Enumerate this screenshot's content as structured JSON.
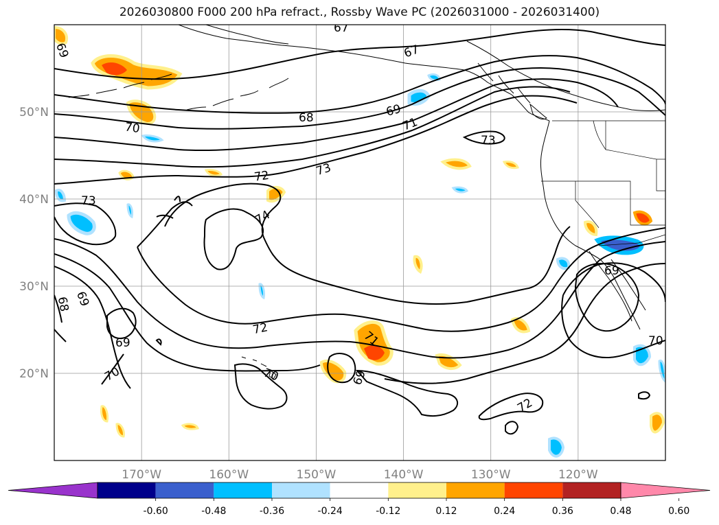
{
  "title": "2026030800 F000 200 hPa refract., Rossby Wave PC (2026031000 - 2026031400)",
  "map": {
    "lat_labels": [
      "50°N",
      "40°N",
      "30°N",
      "20°N"
    ],
    "lon_labels": [
      "170°W",
      "160°W",
      "150°W",
      "140°W",
      "130°W",
      "120°W"
    ],
    "lat_values": [
      50,
      40,
      30,
      20
    ],
    "lon_values": [
      -170,
      -160,
      -150,
      -140,
      -130,
      -120
    ],
    "extent": {
      "lon_min": -180,
      "lon_max": -110,
      "lat_min": 10,
      "lat_max": 60
    },
    "axis_label_color": "#808080",
    "contour_labels": [
      "67",
      "67",
      "69",
      "68",
      "69",
      "70",
      "71",
      "73",
      "72",
      "73",
      "73",
      "74",
      "68",
      "69",
      "69",
      "72",
      "71",
      "69",
      "70",
      "70",
      "69",
      "72",
      "70"
    ]
  },
  "colorbar": {
    "ticks": [
      "-0.60",
      "-0.48",
      "-0.36",
      "-0.24",
      "-0.12",
      "0.12",
      "0.24",
      "0.36",
      "0.48",
      "0.60"
    ],
    "colors": [
      "#9933cc",
      "#00008b",
      "#3a5fcd",
      "#00bfff",
      "#b0e2ff",
      "#ffffff",
      "#fff08c",
      "#ffa500",
      "#ff4500",
      "#b22222",
      "#ff88aa"
    ]
  }
}
